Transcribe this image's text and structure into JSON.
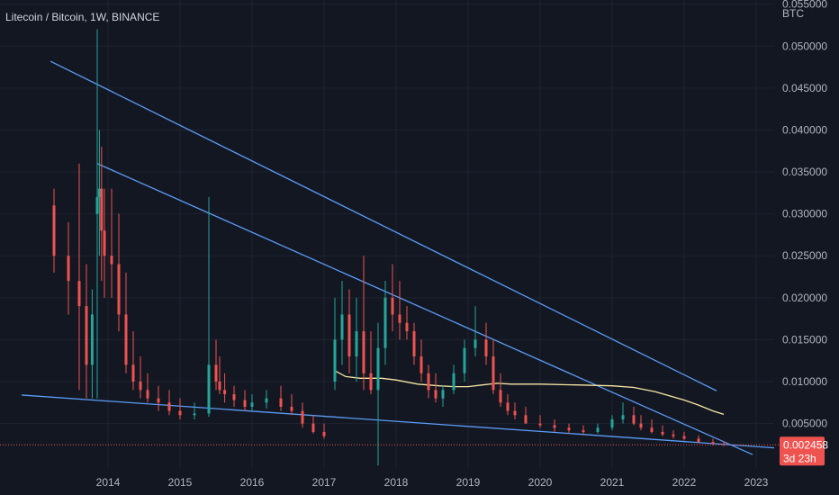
{
  "header": {
    "symbol_title": "Litecoin / Bitcoin, 1W, BINANCE"
  },
  "price_scale": {
    "unit": "BTC",
    "ticks": [
      "0.055000",
      "0.050000",
      "0.045000",
      "0.040000",
      "0.035000",
      "0.030000",
      "0.025000",
      "0.020000",
      "0.015000",
      "0.010000",
      "0.005000"
    ]
  },
  "time_scale": {
    "ticks": [
      "2014",
      "2015",
      "2016",
      "2017",
      "2018",
      "2019",
      "2020",
      "2021",
      "2022",
      "2023"
    ]
  },
  "last_price": {
    "value": "0.002458",
    "countdown": "3d 23h"
  },
  "colors": {
    "background": "#131722",
    "grid": "#1e2330",
    "up": "#26a69a",
    "down": "#ef5350",
    "trendline": "#5b9cf6",
    "moving_average": "#f7e7a4",
    "price_line": "#ef5350",
    "text": "#b2b5be"
  },
  "chart_data": {
    "type": "candlestick",
    "title": "Litecoin / Bitcoin, 1W, BINANCE",
    "ylabel": "BTC",
    "ylim": [
      -0.0003,
      0.0555
    ],
    "xlim": [
      2012.5,
      2023.25
    ],
    "series": [
      {
        "name": "",
        "x": [
          2013.25,
          2013.45,
          2013.6,
          2013.7,
          2013.78,
          2013.85,
          2013.88,
          2013.91,
          2013.95,
          2014.05,
          2014.15,
          2014.25,
          2014.35,
          2014.45,
          2014.55,
          2014.7,
          2014.85,
          2015.0,
          2015.2,
          2015.4,
          2015.5,
          2015.55,
          2015.62,
          2015.75,
          2015.9,
          2016.0,
          2016.2,
          2016.4,
          2016.55,
          2016.7,
          2016.85,
          2017.0,
          2017.15,
          2017.25,
          2017.35,
          2017.45,
          2017.55,
          2017.65,
          2017.75,
          2017.85,
          2017.95,
          2018.05,
          2018.15,
          2018.25,
          2018.35,
          2018.45,
          2018.55,
          2018.65,
          2018.8,
          2018.95,
          2019.1,
          2019.25,
          2019.35,
          2019.45,
          2019.55,
          2019.65,
          2019.8,
          2020.0,
          2020.2,
          2020.4,
          2020.6,
          2020.8,
          2021.0,
          2021.15,
          2021.3,
          2021.4,
          2021.55,
          2021.7,
          2021.85,
          2022.0,
          2022.2,
          2022.4,
          2022.55
        ],
        "open": [
          0.031,
          0.025,
          0.022,
          0.019,
          0.012,
          0.03,
          0.032,
          0.033,
          0.028,
          0.025,
          0.024,
          0.018,
          0.012,
          0.01,
          0.009,
          0.008,
          0.0075,
          0.0065,
          0.006,
          0.0062,
          0.012,
          0.01,
          0.009,
          0.0085,
          0.0078,
          0.007,
          0.0075,
          0.008,
          0.007,
          0.0065,
          0.005,
          0.004,
          0.01,
          0.015,
          0.018,
          0.013,
          0.016,
          0.011,
          0.009,
          0.014,
          0.02,
          0.018,
          0.017,
          0.016,
          0.013,
          0.011,
          0.009,
          0.008,
          0.009,
          0.011,
          0.014,
          0.015,
          0.013,
          0.009,
          0.0075,
          0.0065,
          0.006,
          0.005,
          0.0048,
          0.0045,
          0.0042,
          0.004,
          0.0045,
          0.0055,
          0.006,
          0.005,
          0.0045,
          0.004,
          0.0037,
          0.0035,
          0.0032,
          0.0028,
          0.0026
        ],
        "high": [
          0.033,
          0.029,
          0.036,
          0.024,
          0.021,
          0.052,
          0.04,
          0.038,
          0.033,
          0.033,
          0.03,
          0.023,
          0.016,
          0.013,
          0.011,
          0.0095,
          0.009,
          0.008,
          0.0075,
          0.032,
          0.015,
          0.013,
          0.011,
          0.0095,
          0.009,
          0.0085,
          0.009,
          0.0095,
          0.0085,
          0.0075,
          0.006,
          0.005,
          0.02,
          0.022,
          0.021,
          0.02,
          0.025,
          0.016,
          0.017,
          0.022,
          0.024,
          0.022,
          0.019,
          0.017,
          0.015,
          0.012,
          0.011,
          0.0095,
          0.012,
          0.015,
          0.019,
          0.017,
          0.015,
          0.011,
          0.0085,
          0.0075,
          0.007,
          0.006,
          0.0055,
          0.005,
          0.0048,
          0.005,
          0.006,
          0.0075,
          0.007,
          0.006,
          0.0055,
          0.0048,
          0.0042,
          0.004,
          0.0036,
          0.0032,
          0.0029
        ],
        "low": [
          0.023,
          0.018,
          0.009,
          0.008,
          0.008,
          0.008,
          0.025,
          0.022,
          0.02,
          0.02,
          0.016,
          0.011,
          0.009,
          0.008,
          0.0075,
          0.0065,
          0.006,
          0.0055,
          0.0055,
          0.0058,
          0.009,
          0.0085,
          0.0075,
          0.007,
          0.0065,
          0.0065,
          0.0068,
          0.0065,
          0.006,
          0.0045,
          0.0038,
          0.0032,
          0.009,
          0.012,
          0.011,
          0.01,
          0.009,
          0.0085,
          0.0,
          0.012,
          0.016,
          0.015,
          0.015,
          0.012,
          0.01,
          0.008,
          0.0075,
          0.007,
          0.0085,
          0.01,
          0.013,
          0.012,
          0.0085,
          0.007,
          0.006,
          0.0055,
          0.005,
          0.0045,
          0.004,
          0.0038,
          0.0037,
          0.0038,
          0.0042,
          0.005,
          0.0048,
          0.0042,
          0.0038,
          0.0035,
          0.0032,
          0.003,
          0.0027,
          0.0024,
          0.0023
        ],
        "close": [
          0.025,
          0.022,
          0.019,
          0.012,
          0.018,
          0.032,
          0.033,
          0.028,
          0.025,
          0.024,
          0.018,
          0.012,
          0.01,
          0.009,
          0.008,
          0.0075,
          0.0065,
          0.006,
          0.0062,
          0.012,
          0.01,
          0.009,
          0.0085,
          0.0078,
          0.007,
          0.0075,
          0.008,
          0.007,
          0.0065,
          0.005,
          0.004,
          0.0035,
          0.015,
          0.018,
          0.013,
          0.016,
          0.011,
          0.009,
          0.014,
          0.02,
          0.018,
          0.017,
          0.016,
          0.013,
          0.011,
          0.009,
          0.008,
          0.009,
          0.011,
          0.014,
          0.015,
          0.013,
          0.009,
          0.0075,
          0.0065,
          0.006,
          0.005,
          0.0048,
          0.0045,
          0.0042,
          0.004,
          0.0045,
          0.0055,
          0.006,
          0.005,
          0.0045,
          0.004,
          0.0037,
          0.0035,
          0.0032,
          0.0028,
          0.0026,
          0.0025
        ]
      }
    ],
    "moving_average": {
      "x": [
        2017.15,
        2017.3,
        2017.5,
        2017.8,
        2018.0,
        2018.3,
        2018.6,
        2018.8,
        2019.0,
        2019.2,
        2019.4,
        2019.6,
        2020.0,
        2020.5,
        2021.0,
        2021.3,
        2021.6,
        2021.8,
        2022.0,
        2022.2,
        2022.4,
        2022.55
      ],
      "y": [
        0.0113,
        0.0106,
        0.0104,
        0.0104,
        0.0102,
        0.0097,
        0.0095,
        0.0094,
        0.0094,
        0.0096,
        0.0098,
        0.0097,
        0.0097,
        0.0096,
        0.0095,
        0.0093,
        0.0088,
        0.0083,
        0.0078,
        0.0072,
        0.0065,
        0.0061
      ]
    },
    "trendlines": [
      {
        "x1": 2013.2,
        "y1": 0.0482,
        "x2": 2022.45,
        "y2": 0.0089
      },
      {
        "x1": 2013.85,
        "y1": 0.036,
        "x2": 2022.95,
        "y2": 0.0013
      },
      {
        "x1": 2012.8,
        "y1": 0.0084,
        "x2": 2023.25,
        "y2": 0.0021
      }
    ],
    "last_price_line": 0.002458,
    "grid": true
  }
}
